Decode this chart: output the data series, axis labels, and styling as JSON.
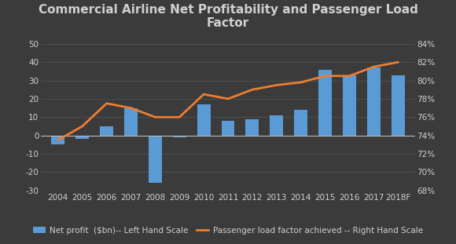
{
  "years": [
    "2004",
    "2005",
    "2006",
    "2007",
    "2008",
    "2009",
    "2010",
    "2011",
    "2012",
    "2013",
    "2014",
    "2015",
    "2016",
    "2017",
    "2018F"
  ],
  "net_profit": [
    -5,
    -2,
    5,
    15,
    -26,
    -1,
    17,
    8,
    9,
    11,
    14,
    36,
    33,
    37,
    33
  ],
  "load_factor": [
    73.5,
    75.0,
    77.5,
    77.0,
    76.0,
    76.0,
    78.5,
    78.0,
    79.0,
    79.5,
    79.8,
    80.5,
    80.5,
    81.5,
    82.0
  ],
  "bar_color": "#5b9bd5",
  "line_color": "#ed7d31",
  "background_color": "#3b3b3b",
  "grid_color": "#555555",
  "text_color": "#d0d0d0",
  "title": "Commercial Airline Net Profitability and Passenger Load\nFactor",
  "ylim_left": [
    -30,
    50
  ],
  "ylim_right": [
    68,
    84
  ],
  "yticks_left": [
    -30,
    -20,
    -10,
    0,
    10,
    20,
    30,
    40,
    50
  ],
  "yticks_right": [
    68,
    70,
    72,
    74,
    76,
    78,
    80,
    82,
    84
  ],
  "legend_bar_label": "Net profit  ($bn)-- Left Hand Scale",
  "legend_line_label": "Passenger load factor achieved -- Right Hand Scale",
  "title_fontsize": 11,
  "tick_fontsize": 7.5,
  "legend_fontsize": 7.5
}
